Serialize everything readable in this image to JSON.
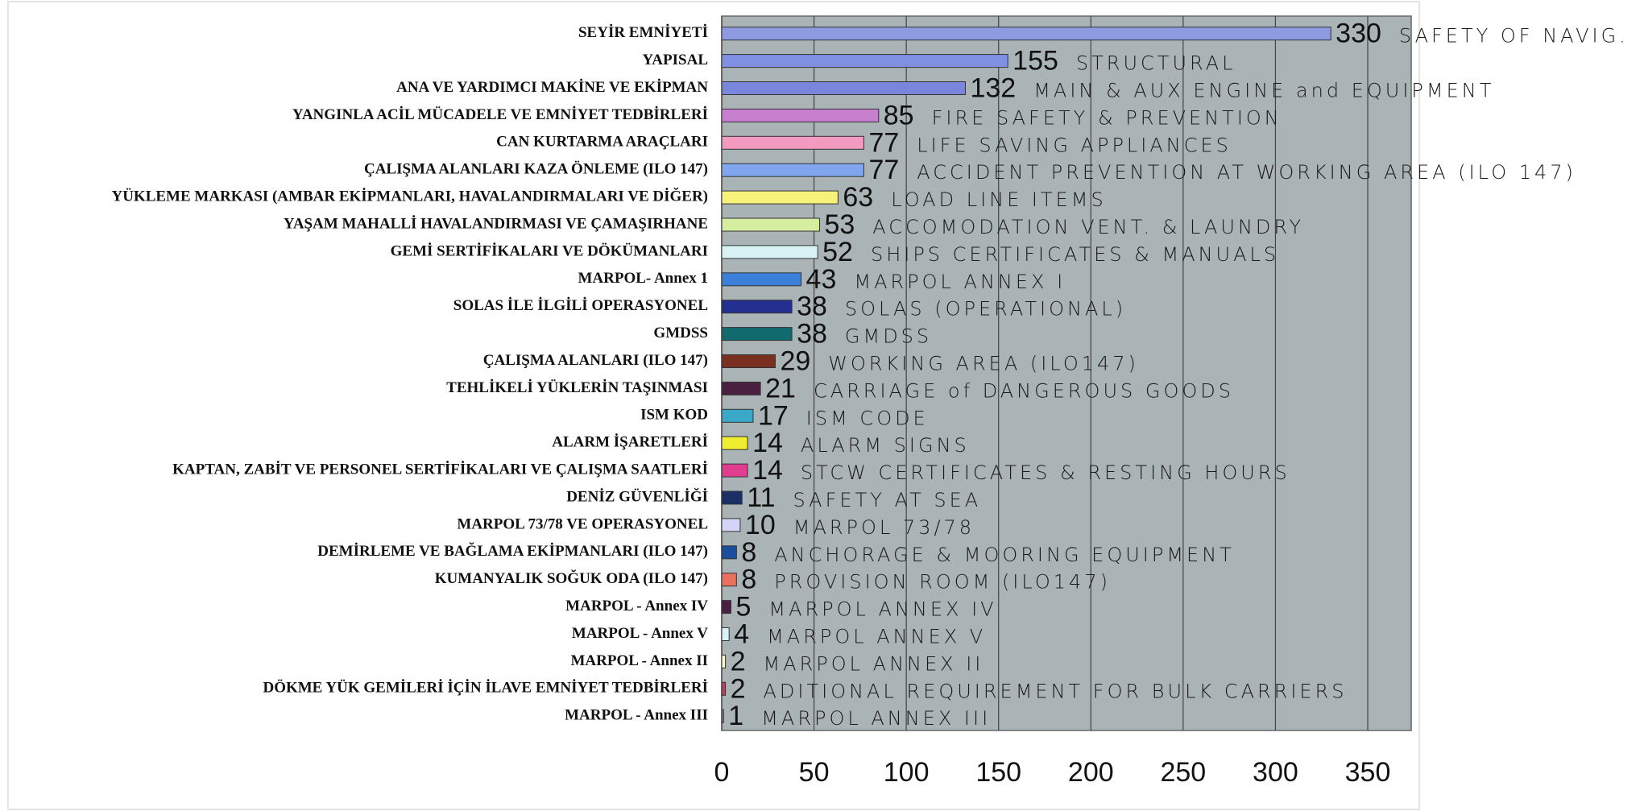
{
  "chart_data": {
    "type": "barh",
    "categories": [
      "SEYİR EMNİYETİ",
      "YAPISAL",
      "ANA VE YARDIMCI MAKİNE VE EKİPMAN",
      "YANGINLA ACİL MÜCADELE VE EMNİYET TEDBİRLERİ",
      "CAN KURTARMA ARAÇLARI",
      "ÇALIŞMA ALANLARI KAZA ÖNLEME (ILO 147)",
      "YÜKLEME MARKASI (AMBAR EKİPMANLARI, HAVALANDIRMALARI VE DİĞER)",
      "YAŞAM MAHALLİ HAVALANDIRMASI VE ÇAMAŞIRHANE",
      "GEMİ SERTİFİKALARI VE DÖKÜMANLARI",
      "MARPOL- Annex 1",
      "SOLAS İLE İLGİLİ OPERASYONEL",
      "GMDSS",
      "ÇALIŞMA ALANLARI (ILO 147)",
      "TEHLİKELİ YÜKLERİN TAŞINMASI",
      "ISM KOD",
      "ALARM İŞARETLERİ",
      "KAPTAN, ZABİT VE PERSONEL SERTİFİKALARI VE ÇALIŞMA SAATLERİ",
      "DENİZ GÜVENLİĞİ",
      "MARPOL 73/78 VE OPERASYONEL",
      "DEMİRLEME VE BAĞLAMA EKİPMANLARI (ILO 147)",
      "KUMANYALIK SOĞUK ODA (ILO 147)",
      "MARPOL - Annex IV",
      "MARPOL - Annex V",
      "MARPOL - Annex II",
      "DÖKME YÜK GEMİLERİ İÇİN İLAVE EMNİYET TEDBİRLERİ",
      "MARPOL - Annex III"
    ],
    "values": [
      330,
      155,
      132,
      85,
      77,
      77,
      63,
      53,
      52,
      43,
      38,
      38,
      29,
      21,
      17,
      14,
      14,
      11,
      10,
      8,
      8,
      5,
      4,
      2,
      2,
      1
    ],
    "colors": [
      "#8f9be0",
      "#8090e2",
      "#7a86dc",
      "#c87fd0",
      "#f29ac0",
      "#7fa6ee",
      "#f7f37a",
      "#d6eea0",
      "#d8f2f5",
      "#3a80d8",
      "#24308f",
      "#116b6e",
      "#7a3020",
      "#4a2040",
      "#3aa8c8",
      "#f0ec30",
      "#e03c90",
      "#1a2f66",
      "#d4d4f8",
      "#1a4fa0",
      "#ea7060",
      "#4a2040",
      "#d8f2f8",
      "#f8f8c0",
      "#c0405a",
      "#8a7a9a"
    ],
    "annotations": [
      "SAFETY OF NAVIG.",
      "STRUCTURAL",
      "MAIN & AUX ENGINE and EQUIPMENT",
      "FIRE SAFETY & PREVENTION",
      "LIFE SAVING APPLIANCES",
      "ACCIDENT PREVENTION AT WORKING AREA (ILO 147)",
      "LOAD LINE ITEMS",
      "ACCOMODATION VENT. & LAUNDRY",
      "SHIPS CERTIFICATES & MANUALS",
      "MARPOL ANNEX I",
      "SOLAS (OPERATIONAL)",
      "GMDSS",
      "WORKING AREA (ILO147)",
      "CARRIAGE of DANGEROUS GOODS",
      "ISM CODE",
      "ALARM SIGNS",
      "STCW CERTIFICATES & RESTING HOURS",
      "SAFETY AT SEA",
      "MARPOL 73/78",
      "ANCHORAGE & MOORING EQUIPMENT",
      "PROVISION ROOM (ILO147)",
      "MARPOL ANNEX IV",
      "MARPOL ANNEX V",
      "MARPOL ANNEX II",
      "ADITIONAL REQUIREMENT FOR BULK CARRIERS",
      "MARPOL ANNEX III"
    ],
    "xlim": [
      0,
      350
    ],
    "xticks": [
      0,
      50,
      100,
      150,
      200,
      250,
      300,
      350
    ],
    "grid": true
  }
}
